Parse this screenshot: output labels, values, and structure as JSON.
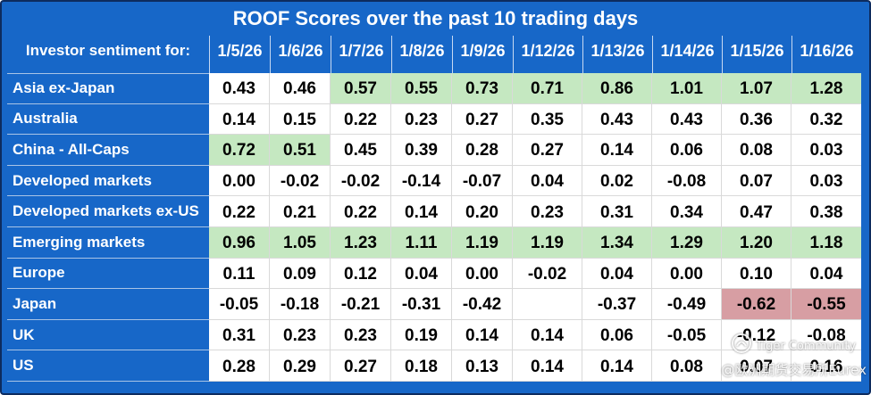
{
  "colors": {
    "background": "#1767c8",
    "frame_border": "#0d2b5e"
  },
  "chart_data": {
    "type": "table",
    "title": "ROOF Scores over the past 10 trading days",
    "row_header": "Investor sentiment for:",
    "columns": [
      "1/5/26",
      "1/6/26",
      "1/7/26",
      "1/8/26",
      "1/9/26",
      "1/12/26",
      "1/13/26",
      "1/14/26",
      "1/15/26",
      "1/16/26"
    ],
    "rows": [
      {
        "label": "Asia ex-Japan",
        "values": [
          "0.43",
          "0.46",
          "0.57",
          "0.55",
          "0.73",
          "0.71",
          "0.86",
          "1.01",
          "1.07",
          "1.28"
        ],
        "fills": [
          null,
          null,
          "#c5e8c1",
          "#c5e8c1",
          "#c5e8c1",
          "#c5e8c1",
          "#c5e8c1",
          "#c5e8c1",
          "#c5e8c1",
          "#c5e8c1"
        ]
      },
      {
        "label": "Australia",
        "values": [
          "0.14",
          "0.15",
          "0.22",
          "0.23",
          "0.27",
          "0.35",
          "0.43",
          "0.43",
          "0.36",
          "0.32"
        ]
      },
      {
        "label": "China - All-Caps",
        "values": [
          "0.72",
          "0.51",
          "0.45",
          "0.39",
          "0.28",
          "0.27",
          "0.14",
          "0.06",
          "0.08",
          "0.03"
        ],
        "fills": [
          "#c5e8c1",
          "#c5e8c1",
          null,
          null,
          null,
          null,
          null,
          null,
          null,
          null
        ]
      },
      {
        "label": "Developed markets",
        "values": [
          "0.00",
          "-0.02",
          "-0.02",
          "-0.14",
          "-0.07",
          "0.04",
          "0.02",
          "-0.08",
          "0.07",
          "0.03"
        ]
      },
      {
        "label": "Developed markets ex-US",
        "values": [
          "0.22",
          "0.21",
          "0.22",
          "0.14",
          "0.20",
          "0.23",
          "0.31",
          "0.34",
          "0.47",
          "0.38"
        ]
      },
      {
        "label": "Emerging markets",
        "values": [
          "0.96",
          "1.05",
          "1.23",
          "1.11",
          "1.19",
          "1.19",
          "1.34",
          "1.29",
          "1.20",
          "1.18"
        ],
        "fills": [
          "#c5e8c1",
          "#c5e8c1",
          "#c5e8c1",
          "#c5e8c1",
          "#c5e8c1",
          "#c5e8c1",
          "#c5e8c1",
          "#c5e8c1",
          "#c5e8c1",
          "#c5e8c1"
        ]
      },
      {
        "label": "Europe",
        "values": [
          "0.11",
          "0.09",
          "0.12",
          "0.04",
          "0.00",
          "-0.02",
          "0.04",
          "0.00",
          "0.10",
          "0.04"
        ]
      },
      {
        "label": "Japan",
        "values": [
          "-0.05",
          "-0.18",
          "-0.21",
          "-0.31",
          "-0.42",
          null,
          "-0.37",
          "-0.49",
          "-0.62",
          "-0.55"
        ],
        "fills": [
          null,
          null,
          null,
          null,
          null,
          null,
          null,
          null,
          "#d79ea3",
          "#d79ea3"
        ]
      },
      {
        "label": "UK",
        "values": [
          "0.31",
          "0.23",
          "0.23",
          "0.19",
          "0.14",
          "0.14",
          "0.06",
          "-0.05",
          "-0.12",
          "-0.08"
        ]
      },
      {
        "label": "US",
        "values": [
          "0.28",
          "0.29",
          "0.27",
          "0.18",
          "0.13",
          "0.14",
          "0.14",
          "0.08",
          "0.07",
          "0.16"
        ]
      }
    ]
  },
  "watermark": {
    "logo_icon": "tiger-logo-icon",
    "brand": "Tiger Community",
    "handle": "@欧洲期货交易所Eurex"
  }
}
